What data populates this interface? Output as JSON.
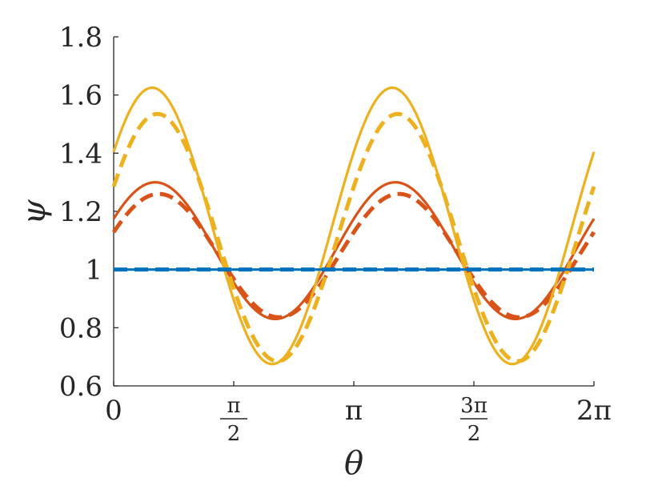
{
  "chart_data": {
    "type": "line",
    "title": "",
    "xlabel": "θ",
    "ylabel": "ψ",
    "xlim": [
      0,
      6.283185307
    ],
    "ylim": [
      0.6,
      1.8
    ],
    "grid": false,
    "legend": "none",
    "x_ticks": [
      {
        "value": 0,
        "label": "0"
      },
      {
        "value": 1.570796327,
        "numerator": "π",
        "denominator": "2"
      },
      {
        "value": 3.141592654,
        "label": "π"
      },
      {
        "value": 4.71238898,
        "numerator": "3π",
        "denominator": "2"
      },
      {
        "value": 6.283185307,
        "label": "2π"
      }
    ],
    "y_ticks": [
      {
        "value": 0.6,
        "label": "0.6"
      },
      {
        "value": 0.8,
        "label": "0.8"
      },
      {
        "value": 1.0,
        "label": "1"
      },
      {
        "value": 1.2,
        "label": "1.2"
      },
      {
        "value": 1.4,
        "label": "1.4"
      },
      {
        "value": 1.6,
        "label": "1.6"
      },
      {
        "value": 1.8,
        "label": "1.8"
      }
    ],
    "series": [
      {
        "style": "solid",
        "color": "#0072BD",
        "formula": {
          "offset": 1.0,
          "amplitude": 0.0,
          "phase": 0.0,
          "harmonic": 2
        }
      },
      {
        "style": "dashed",
        "color": "#0072BD",
        "formula": {
          "offset": 1.0,
          "amplitude": 0.0,
          "phase": 0.0,
          "harmonic": 2
        }
      },
      {
        "style": "solid",
        "color": "#D95319",
        "formula": {
          "offset": 1.065,
          "amplitude": 0.235,
          "phase": -0.485,
          "harmonic": 2
        }
      },
      {
        "style": "dashed",
        "color": "#D95319",
        "formula": {
          "offset": 1.048,
          "amplitude": 0.212,
          "phase": -0.389,
          "harmonic": 2
        }
      },
      {
        "style": "solid",
        "color": "#EDB120",
        "formula": {
          "offset": 1.15,
          "amplitude": 0.475,
          "phase": -0.565,
          "harmonic": 2
        }
      },
      {
        "style": "dashed",
        "color": "#EDB120",
        "formula": {
          "offset": 1.11,
          "amplitude": 0.425,
          "phase": -0.425,
          "harmonic": 2
        }
      }
    ]
  }
}
